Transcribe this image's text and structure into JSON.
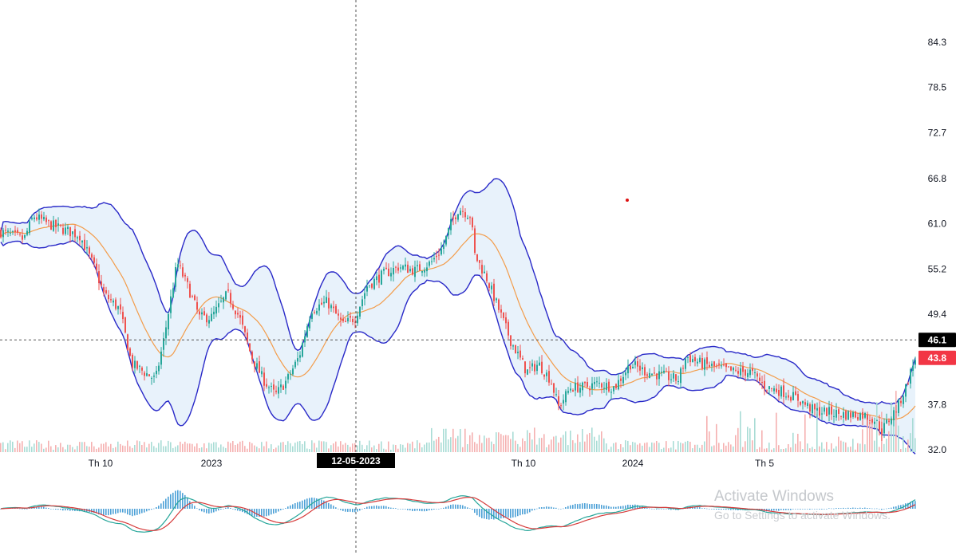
{
  "chart_data": {
    "type": "candlestick",
    "price_scale": {
      "ticks": [
        "84.3",
        "78.5",
        "72.7",
        "66.8",
        "61.0",
        "55.2",
        "49.4",
        "37.8",
        "32.0"
      ],
      "ylim": [
        32.0,
        84.3
      ]
    },
    "time_axis": {
      "labels": [
        "Th 10",
        "2023",
        "Th 10",
        "2024",
        "Th 5"
      ]
    },
    "crosshair": {
      "date_label": "12-05-2023",
      "price_label": "46.1"
    },
    "last_price_label": "43.8",
    "close_anchors": [
      [
        0,
        60
      ],
      [
        30,
        59
      ],
      [
        42,
        62
      ],
      [
        60,
        61
      ],
      [
        100,
        59.5
      ],
      [
        120,
        55
      ],
      [
        130,
        52
      ],
      [
        150,
        50
      ],
      [
        165,
        43
      ],
      [
        180,
        42
      ],
      [
        195,
        41
      ],
      [
        205,
        46
      ],
      [
        215,
        52
      ],
      [
        222,
        56
      ],
      [
        235,
        53
      ],
      [
        250,
        49
      ],
      [
        265,
        49
      ],
      [
        285,
        52
      ],
      [
        300,
        49
      ],
      [
        315,
        44
      ],
      [
        330,
        41
      ],
      [
        345,
        39
      ],
      [
        360,
        41
      ],
      [
        375,
        44
      ],
      [
        390,
        50
      ],
      [
        410,
        51
      ],
      [
        430,
        48
      ],
      [
        445,
        49
      ],
      [
        460,
        53
      ],
      [
        480,
        54.5
      ],
      [
        500,
        55.5
      ],
      [
        520,
        55
      ],
      [
        540,
        56
      ],
      [
        555,
        58
      ],
      [
        565,
        61
      ],
      [
        575,
        63
      ],
      [
        590,
        62
      ],
      [
        595,
        57
      ],
      [
        610,
        54
      ],
      [
        625,
        50
      ],
      [
        640,
        46
      ],
      [
        660,
        42
      ],
      [
        675,
        43
      ],
      [
        690,
        41
      ],
      [
        700,
        37.5
      ],
      [
        715,
        40
      ],
      [
        730,
        40
      ],
      [
        750,
        40.5
      ],
      [
        770,
        40
      ],
      [
        790,
        43
      ],
      [
        810,
        42
      ],
      [
        830,
        41.5
      ],
      [
        850,
        41
      ],
      [
        860,
        44
      ],
      [
        880,
        43
      ],
      [
        900,
        42.5
      ],
      [
        920,
        42
      ],
      [
        940,
        42
      ],
      [
        960,
        40
      ],
      [
        980,
        39.5
      ],
      [
        1000,
        38.5
      ],
      [
        1020,
        37
      ],
      [
        1040,
        36.8
      ],
      [
        1060,
        36.5
      ],
      [
        1080,
        36.5
      ],
      [
        1095,
        36
      ],
      [
        1105,
        34.5
      ],
      [
        1115,
        36
      ],
      [
        1125,
        37.5
      ],
      [
        1135,
        40
      ],
      [
        1147,
        43.8
      ]
    ],
    "bollinger_period": 20,
    "bollinger_stddev": 2,
    "colors": {
      "up": "#26a69a",
      "down": "#ef5350",
      "bb_band": "#2929c8",
      "bb_basis": "#f39c4a",
      "bb_fill": "#e8f2fb",
      "macd_line": "#26a69a",
      "signal_line": "#d63a3a",
      "histogram": "#2d8fd0",
      "axis_text": "#131722",
      "badge_dark": "#000000",
      "badge_red": "#f23645"
    },
    "watermark": {
      "title": "Activate Windows",
      "subtitle": "Go to Settings to activate Windows."
    }
  }
}
